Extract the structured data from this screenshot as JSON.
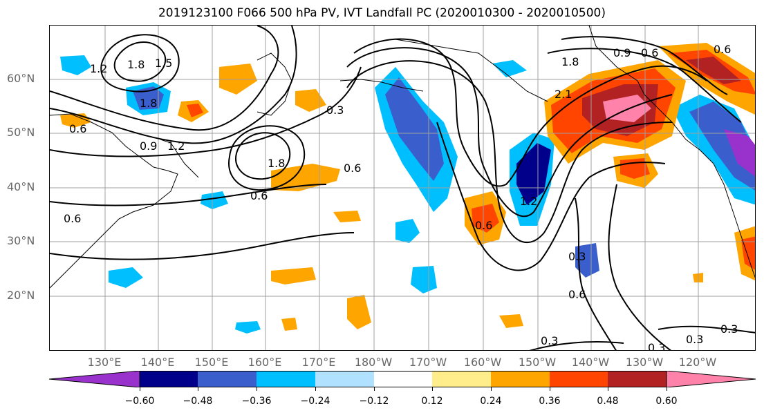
{
  "title": "2019123100 F066 500 hPa PV, IVT Landfall PC (2020010300 - 2020010500)",
  "lat_labels": [
    "60°N",
    "50°N",
    "40°N",
    "30°N",
    "20°N"
  ],
  "lon_labels": [
    "130°E",
    "140°E",
    "150°E",
    "160°E",
    "170°E",
    "180°W",
    "170°W",
    "160°W",
    "150°W",
    "140°W",
    "130°W",
    "120°W"
  ],
  "contour_labels": [
    "1.8",
    "1.5",
    "1.2",
    "1.8",
    "0.9",
    "1.2",
    "0.6",
    "0.3",
    "1.8",
    "0.6",
    "0.6",
    "0.9",
    "0.6",
    "1.8",
    "0.6",
    "2.1",
    "0.6",
    "1.2",
    "0.6",
    "0.3",
    "0.6",
    "0.3",
    "0.3",
    "0.3",
    "0.3"
  ],
  "colorbar": {
    "ticks": [
      "−0.60",
      "−0.48",
      "−0.36",
      "−0.24",
      "−0.12",
      "0.12",
      "0.24",
      "0.36",
      "0.48",
      "0.60"
    ],
    "colors": [
      "#9932cc",
      "#00008b",
      "#3a5fcd",
      "#00bfff",
      "#b0e2ff",
      "#ffffff",
      "#ffec8b",
      "#ffa500",
      "#ff4500",
      "#b22222",
      "#ff82ab",
      "#ff82ab"
    ]
  }
}
